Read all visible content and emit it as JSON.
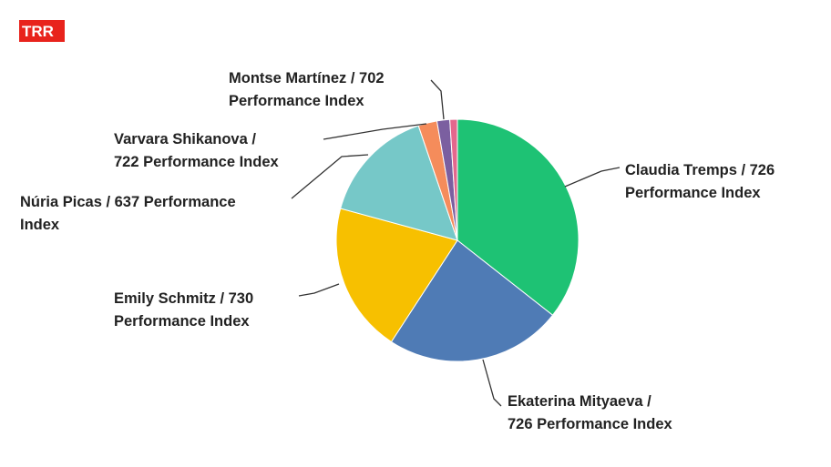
{
  "logo": "TRR",
  "chart_data": {
    "type": "pie",
    "categories": [
      [
        "Claudia Tremps / 726",
        "Performance Index"
      ],
      [
        "Ekaterina Mityaeva /",
        "726 Performance Index"
      ],
      [
        "Emily Schmitz / 730",
        "Performance Index"
      ],
      [
        "Núria Picas / 637 Performance",
        "Index"
      ],
      [
        "Varvara Shikanova /",
        "722 Performance Index"
      ],
      [
        "Montse Martínez / 702",
        "Performance Index"
      ],
      null
    ],
    "values": [
      35.5,
      23.5,
      20,
      15.5,
      2.5,
      1.7,
      1
    ],
    "colors": [
      "#1ec274",
      "#4f7bb5",
      "#f7c000",
      "#76c8c8",
      "#f58c5b",
      "#7b5fa0",
      "#e4678d"
    ]
  }
}
